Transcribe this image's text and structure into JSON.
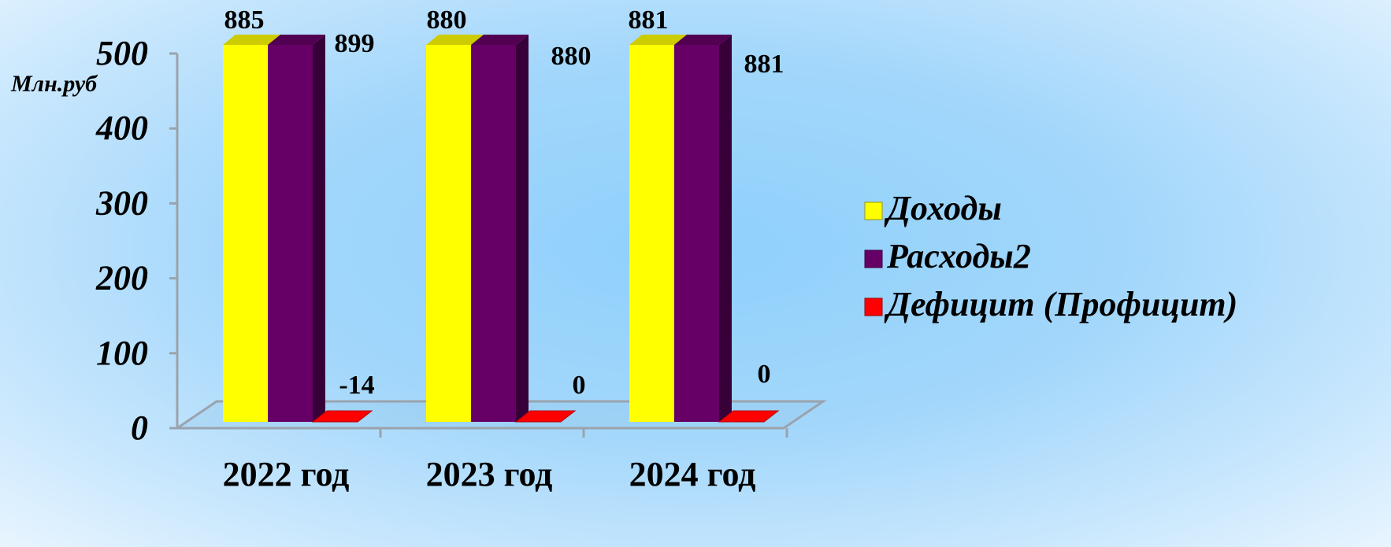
{
  "chart_data": {
    "type": "bar",
    "title": "",
    "xlabel": "",
    "ylabel": "Млн.руб",
    "ylim": [
      0,
      500
    ],
    "yticks": [
      "0",
      "100",
      "200",
      "300",
      "400",
      "500"
    ],
    "categories": [
      "2022 год",
      "2023 год",
      "2024 год"
    ],
    "series": [
      {
        "name": "Доходы",
        "values": [
          885,
          880,
          881
        ],
        "color": "#ffff00"
      },
      {
        "name": "Расходы2",
        "values": [
          899,
          880,
          881
        ],
        "color": "#660066"
      },
      {
        "name": "Дефицит (Профицит)",
        "values": [
          -14,
          0,
          0
        ],
        "color": "#ff0000"
      }
    ],
    "data_labels": [
      [
        "885",
        "880",
        "881"
      ],
      [
        "899",
        "880",
        "881"
      ],
      [
        "-14",
        "0",
        "0"
      ]
    ],
    "clipped_at_max": true,
    "grid": false,
    "legend_position": "right",
    "style": "3d-column"
  }
}
